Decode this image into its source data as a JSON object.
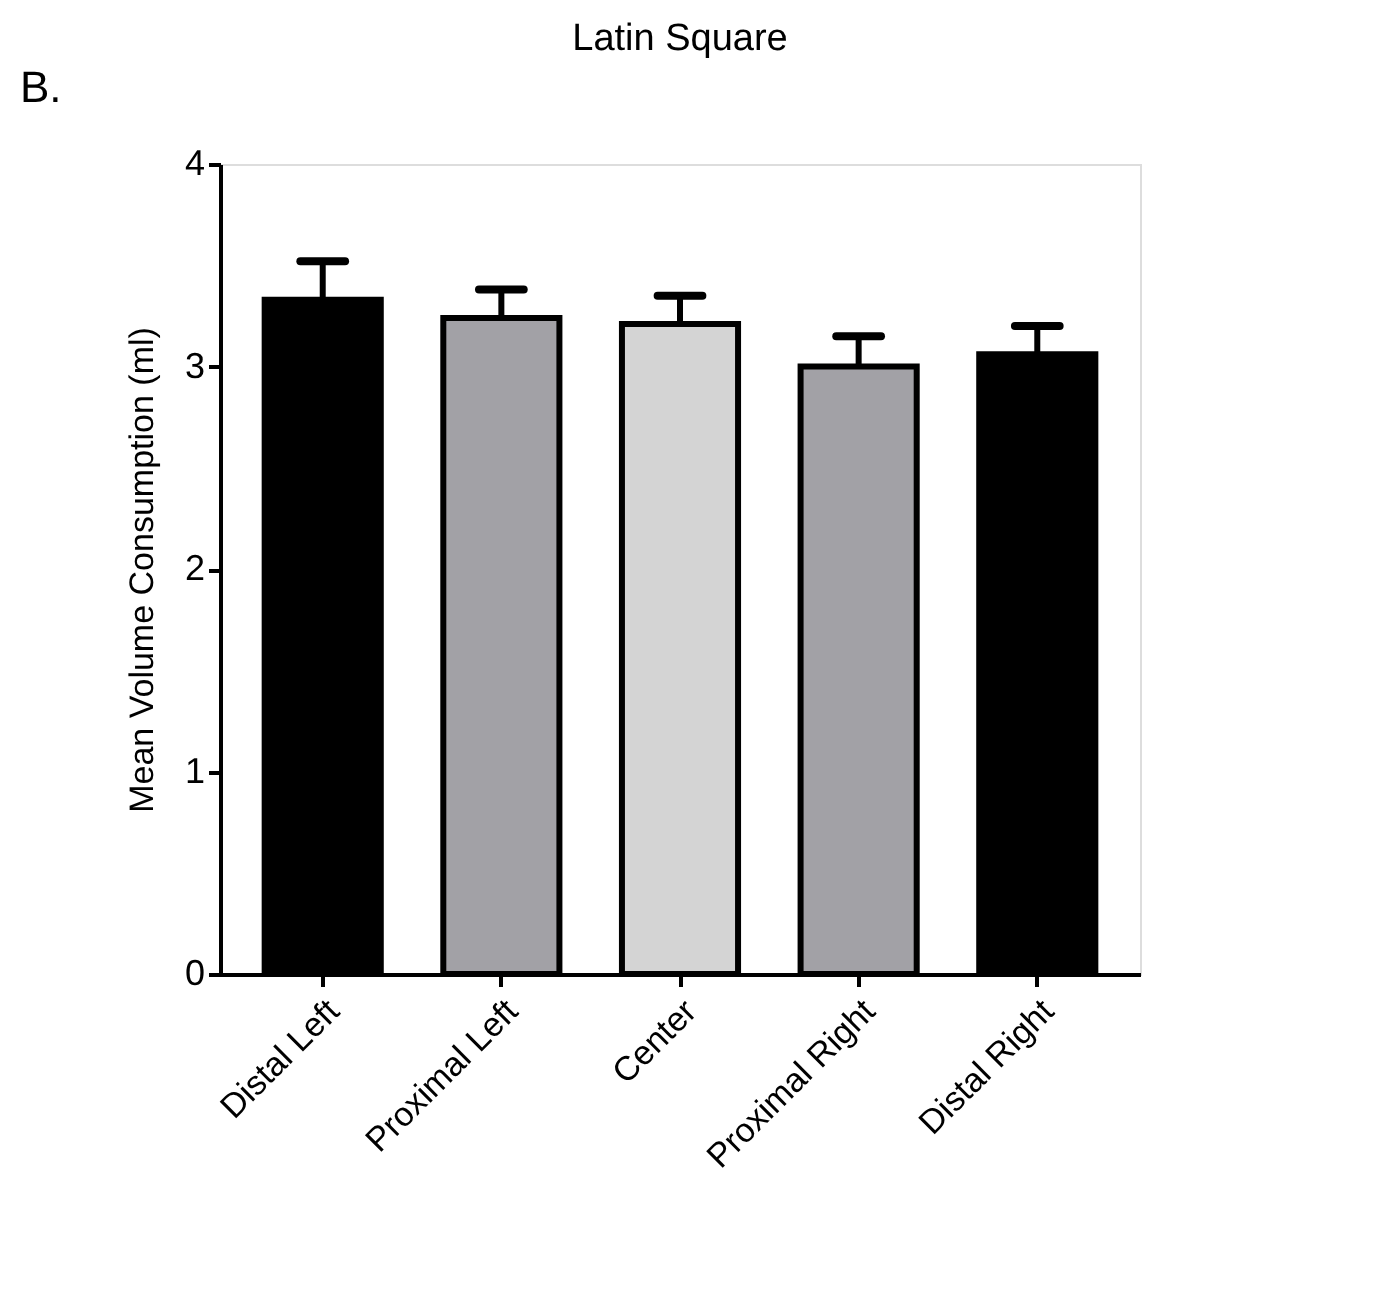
{
  "chart_data": {
    "type": "bar",
    "title": "Latin Square",
    "ylabel": "Mean Volume Consumption (ml)",
    "categories": [
      "Distal Left",
      "Proximal Left",
      "Center",
      "Proximal Right",
      "Distal Right"
    ],
    "values": [
      3.33,
      3.24,
      3.21,
      3.0,
      3.06
    ],
    "colors": [
      "#000000",
      "#a2a1a6",
      "#d4d4d4",
      "#a2a1a6",
      "#000000"
    ],
    "errors": [
      [
        3.33,
        3.52
      ],
      [
        3.24,
        3.38
      ],
      [
        3.21,
        3.35
      ],
      [
        3.0,
        3.15
      ],
      [
        3.06,
        3.2
      ]
    ],
    "ylim": [
      0,
      4
    ],
    "yticks": [
      0,
      1,
      2,
      3,
      4
    ],
    "grid": false,
    "annotations": [
      "B."
    ]
  }
}
